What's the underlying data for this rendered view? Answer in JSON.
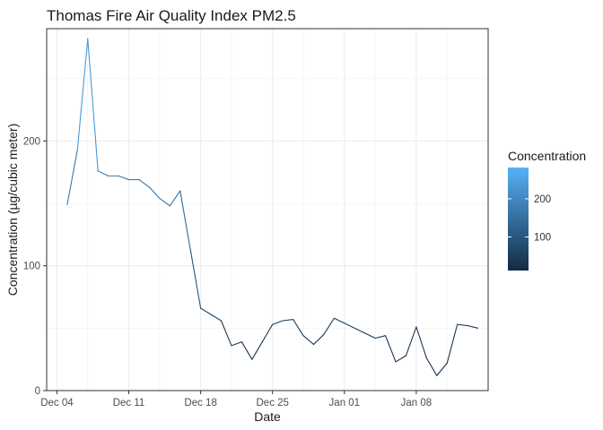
{
  "chart_data": {
    "type": "line",
    "title": "Thomas Fire Air Quality Index PM2.5",
    "xlabel": "Date",
    "ylabel": "Concentration (µg/cubic meter)",
    "x_ticks": [
      {
        "label": "Dec 04",
        "date": "2017-12-04"
      },
      {
        "label": "Dec 11",
        "date": "2017-12-11"
      },
      {
        "label": "Dec 18",
        "date": "2017-12-18"
      },
      {
        "label": "Dec 25",
        "date": "2017-12-25"
      },
      {
        "label": "Jan 01",
        "date": "2018-01-01"
      },
      {
        "label": "Jan 08",
        "date": "2018-01-08"
      }
    ],
    "y_ticks": [
      0,
      100,
      200
    ],
    "xlim": [
      "2017-12-03",
      "2018-01-15"
    ],
    "ylim": [
      0,
      290
    ],
    "grid": true,
    "line_color_scale": {
      "low": "#132b43",
      "high": "#56b1f7",
      "min": 12,
      "max": 282
    },
    "legend": {
      "title": "Concentration",
      "placement": "right",
      "ticks": [
        100,
        200
      ]
    },
    "series": [
      {
        "x": [
          "2017-12-05",
          "2017-12-06",
          "2017-12-07",
          "2017-12-08",
          "2017-12-09",
          "2017-12-10",
          "2017-12-11",
          "2017-12-12",
          "2017-12-13",
          "2017-12-14",
          "2017-12-15",
          "2017-12-16",
          "2017-12-17",
          "2017-12-18",
          "2017-12-19",
          "2017-12-20",
          "2017-12-21",
          "2017-12-22",
          "2017-12-23",
          "2017-12-24",
          "2017-12-25",
          "2017-12-26",
          "2017-12-27",
          "2017-12-28",
          "2017-12-29",
          "2017-12-30",
          "2017-12-31",
          "2018-01-01",
          "2018-01-02",
          "2018-01-03",
          "2018-01-04",
          "2018-01-05",
          "2018-01-06",
          "2018-01-07",
          "2018-01-08",
          "2018-01-09",
          "2018-01-10",
          "2018-01-11",
          "2018-01-12",
          "2018-01-13",
          "2018-01-14"
        ],
        "y": [
          149,
          193,
          282,
          176,
          172,
          172,
          169,
          169,
          163,
          154,
          148,
          160,
          113,
          66,
          61,
          56,
          36,
          39,
          25,
          39,
          53,
          56,
          57,
          44,
          37,
          45,
          58,
          54,
          50,
          46,
          42,
          44,
          23,
          28,
          51,
          26,
          12,
          22,
          53,
          52,
          50
        ]
      }
    ]
  }
}
